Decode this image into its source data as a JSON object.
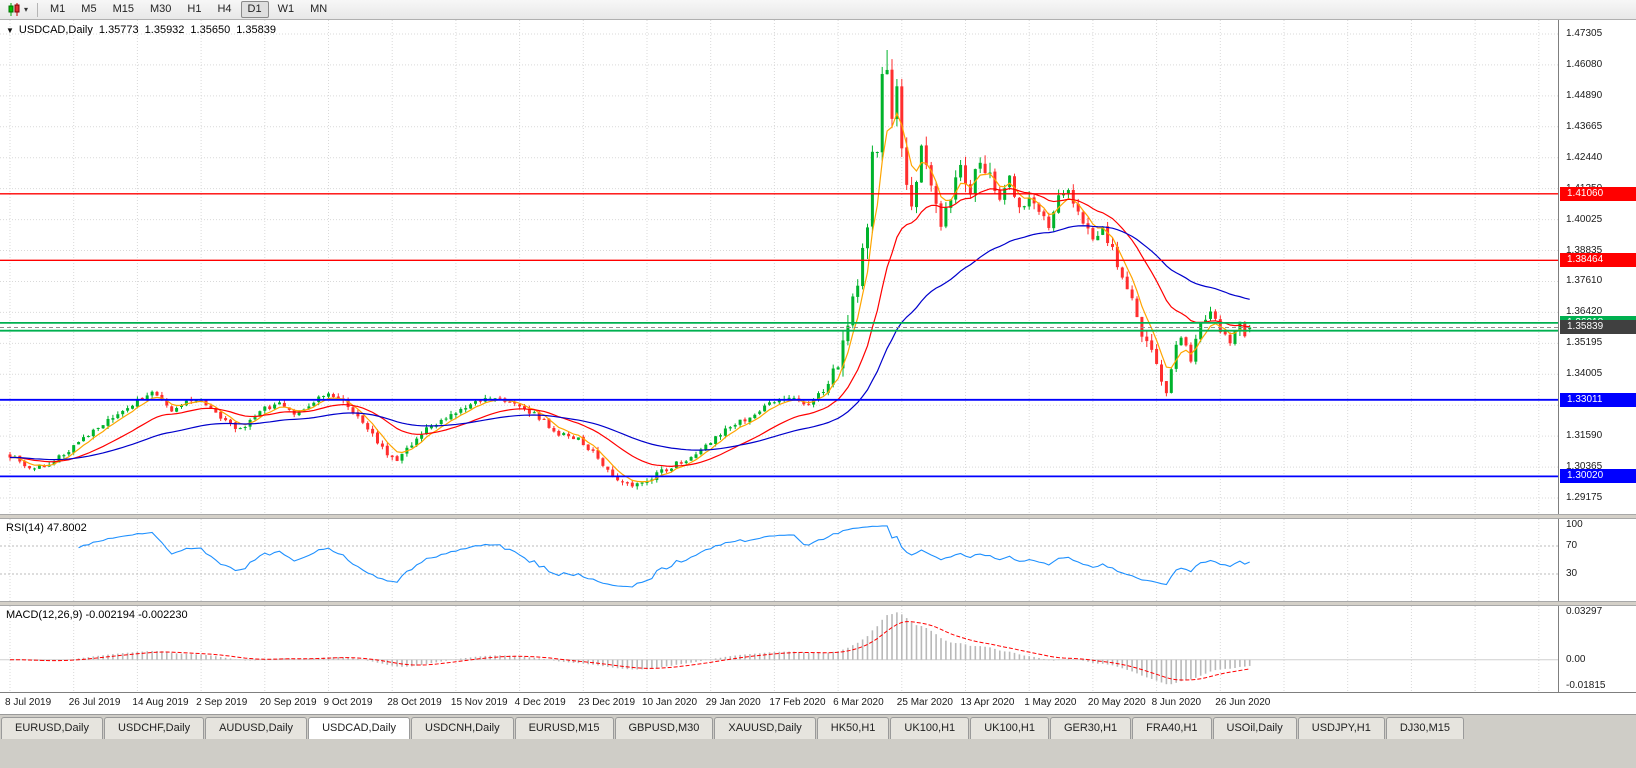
{
  "toolbar": {
    "timeframes": [
      "M1",
      "M5",
      "M15",
      "M30",
      "H1",
      "H4",
      "D1",
      "W1",
      "MN"
    ],
    "active_timeframe": "D1"
  },
  "icons": {
    "one_click_toggle": "▼",
    "chart_type_dropdown": "▾"
  },
  "chart": {
    "title": "USDCAD,Daily",
    "ohlc": {
      "open": "1.35773",
      "high": "1.35932",
      "low": "1.35650",
      "close": "1.35839"
    },
    "price_axis_labels": [
      "1.47305",
      "1.46080",
      "1.44890",
      "1.43665",
      "1.42440",
      "1.41250",
      "1.40025",
      "1.38835",
      "1.37610",
      "1.36420",
      "1.35195",
      "1.34005",
      "1.32780",
      "1.31590",
      "1.30365",
      "1.29175"
    ]
  },
  "indicators": {
    "rsi": {
      "label": "RSI(14) 47.8002",
      "levels": [
        "100",
        "70",
        "30"
      ]
    },
    "macd": {
      "label": "MACD(12,26,9) -0.002194 -0.002230",
      "levels": [
        "0.03297",
        "0.00",
        "-0.01815"
      ]
    }
  },
  "time_axis": [
    "8 Jul 2019",
    "26 Jul 2019",
    "14 Aug 2019",
    "2 Sep 2019",
    "20 Sep 2019",
    "9 Oct 2019",
    "28 Oct 2019",
    "15 Nov 2019",
    "4 Dec 2019",
    "23 Dec 2019",
    "10 Jan 2020",
    "29 Jan 2020",
    "17 Feb 2020",
    "6 Mar 2020",
    "25 Mar 2020",
    "13 Apr 2020",
    "1 May 2020",
    "20 May 2020",
    "8 Jun 2020",
    "26 Jun 2020"
  ],
  "tabs": [
    {
      "label": "EURUSD,Daily",
      "active": false
    },
    {
      "label": "USDCHF,Daily",
      "active": false
    },
    {
      "label": "AUDUSD,Daily",
      "active": false
    },
    {
      "label": "USDCAD,Daily",
      "active": true
    },
    {
      "label": "USDCNH,Daily",
      "active": false
    },
    {
      "label": "EURUSD,M15",
      "active": false
    },
    {
      "label": "GBPUSD,M30",
      "active": false
    },
    {
      "label": "XAUUSD,Daily",
      "active": false
    },
    {
      "label": "HK50,H1",
      "active": false
    },
    {
      "label": "UK100,H1",
      "active": false
    },
    {
      "label": "UK100,H1",
      "active": false
    },
    {
      "label": "GER30,H1",
      "active": false
    },
    {
      "label": "FRA40,H1",
      "active": false
    },
    {
      "label": "USOil,Daily",
      "active": false
    },
    {
      "label": "USDJPY,H1",
      "active": false
    },
    {
      "label": "DJ30,M15",
      "active": false
    }
  ],
  "chart_data": {
    "type": "candlestick",
    "symbol": "USDCAD",
    "timeframe": "Daily",
    "last_ohlc": {
      "open": 1.35773,
      "high": 1.35932,
      "low": 1.3565,
      "close": 1.35839
    },
    "price_axis": {
      "top": 1.47305,
      "bottom": 1.29175
    },
    "num_candles": 254,
    "anchors": [
      [
        0,
        1.3085
      ],
      [
        4,
        1.303
      ],
      [
        9,
        1.306
      ],
      [
        13,
        1.312
      ],
      [
        18,
        1.3195
      ],
      [
        23,
        1.325
      ],
      [
        26,
        1.33
      ],
      [
        29,
        1.333
      ],
      [
        33,
        1.3255
      ],
      [
        36,
        1.329
      ],
      [
        39,
        1.331
      ],
      [
        43,
        1.322
      ],
      [
        47,
        1.3185
      ],
      [
        52,
        1.3265
      ],
      [
        55,
        1.3295
      ],
      [
        58,
        1.3235
      ],
      [
        62,
        1.329
      ],
      [
        65,
        1.333
      ],
      [
        69,
        1.328
      ],
      [
        73,
        1.319
      ],
      [
        77,
        1.309
      ],
      [
        79,
        1.306
      ],
      [
        82,
        1.313
      ],
      [
        86,
        1.3205
      ],
      [
        91,
        1.3245
      ],
      [
        95,
        1.3295
      ],
      [
        99,
        1.3315
      ],
      [
        104,
        1.328
      ],
      [
        108,
        1.323
      ],
      [
        112,
        1.317
      ],
      [
        116,
        1.3145
      ],
      [
        120,
        1.3075
      ],
      [
        124,
        1.299
      ],
      [
        127,
        1.2958
      ],
      [
        130,
        1.299
      ],
      [
        134,
        1.303
      ],
      [
        138,
        1.307
      ],
      [
        143,
        1.314
      ],
      [
        148,
        1.321
      ],
      [
        152,
        1.3245
      ],
      [
        156,
        1.3295
      ],
      [
        160,
        1.3315
      ],
      [
        163,
        1.328
      ],
      [
        166,
        1.334
      ],
      [
        169,
        1.342
      ],
      [
        171,
        1.362
      ],
      [
        173,
        1.373
      ],
      [
        175,
        1.399
      ],
      [
        176,
        1.424
      ],
      [
        177,
        1.43
      ],
      [
        178,
        1.456
      ],
      [
        179,
        1.462
      ],
      [
        180,
        1.44
      ],
      [
        181,
        1.45
      ],
      [
        182,
        1.428
      ],
      [
        183,
        1.412
      ],
      [
        184,
        1.406
      ],
      [
        185,
        1.415
      ],
      [
        186,
        1.428
      ],
      [
        187,
        1.423
      ],
      [
        188,
        1.414
      ],
      [
        190,
        1.399
      ],
      [
        192,
        1.41
      ],
      [
        194,
        1.419
      ],
      [
        196,
        1.411
      ],
      [
        198,
        1.424
      ],
      [
        200,
        1.418
      ],
      [
        202,
        1.409
      ],
      [
        204,
        1.416
      ],
      [
        206,
        1.406
      ],
      [
        208,
        1.409
      ],
      [
        210,
        1.403
      ],
      [
        212,
        1.399
      ],
      [
        214,
        1.408
      ],
      [
        216,
        1.413
      ],
      [
        218,
        1.402
      ],
      [
        220,
        1.396
      ],
      [
        221,
        1.392
      ],
      [
        223,
        1.396
      ],
      [
        225,
        1.388
      ],
      [
        227,
        1.379
      ],
      [
        229,
        1.368
      ],
      [
        231,
        1.356
      ],
      [
        233,
        1.349
      ],
      [
        234,
        1.344
      ],
      [
        235,
        1.338
      ],
      [
        236,
        1.333
      ],
      [
        237,
        1.342
      ],
      [
        238,
        1.351
      ],
      [
        239,
        1.356
      ],
      [
        240,
        1.35
      ],
      [
        241,
        1.346
      ],
      [
        242,
        1.353
      ],
      [
        243,
        1.359
      ],
      [
        244,
        1.363
      ],
      [
        245,
        1.366
      ],
      [
        246,
        1.362
      ],
      [
        247,
        1.358
      ],
      [
        248,
        1.355
      ],
      [
        249,
        1.3515
      ],
      [
        250,
        1.3555
      ],
      [
        251,
        1.359
      ],
      [
        252,
        1.355
      ],
      [
        253,
        1.35839
      ]
    ],
    "extremes": {
      "peak_high": 1.4668,
      "peak_index": 179,
      "june_low": 1.3315,
      "june_low_index": 236,
      "dec_low": 1.2952
    },
    "hlines": [
      {
        "price": 1.4106,
        "color": "#ff0000",
        "badge": "1.41060",
        "width": 1.4
      },
      {
        "price": 1.38464,
        "color": "#ff0000",
        "badge": "1.38464",
        "width": 1.4
      },
      {
        "price": 1.36018,
        "color": "#00b050",
        "badge": "1.36018",
        "width": 1.8
      },
      {
        "price": 1.35712,
        "color": "#00b050",
        "width": 1.8
      },
      {
        "price": 1.33011,
        "color": "#0000ff",
        "badge": "1.33011",
        "width": 1.8
      },
      {
        "price": 1.3002,
        "color": "#0000ff",
        "badge": "1.30020",
        "width": 1.8
      }
    ],
    "current_price": {
      "value": 1.35839,
      "badge": "1.35839",
      "badge_color": "#404040"
    },
    "moving_averages": [
      {
        "period": 5,
        "color": "#ffa500"
      },
      {
        "period": 20,
        "color": "#ff0000"
      },
      {
        "period": 50,
        "color": "#0000cc"
      }
    ],
    "rsi": {
      "period": 14,
      "current": 47.8002,
      "levels": [
        100,
        70,
        30
      ]
    },
    "macd": {
      "fast": 12,
      "slow": 26,
      "signal": 9,
      "current_macd": -0.002194,
      "current_signal": -0.00223,
      "scale_top": 0.03297,
      "scale_bottom": -0.01815
    },
    "colors": {
      "up": "#00b32c",
      "down": "#ff2e2e",
      "grid": "#d9d9d9",
      "rsi": "#1e90ff",
      "macd_hist": "#b9b9b9",
      "macd_signal": "#ff0000"
    }
  }
}
